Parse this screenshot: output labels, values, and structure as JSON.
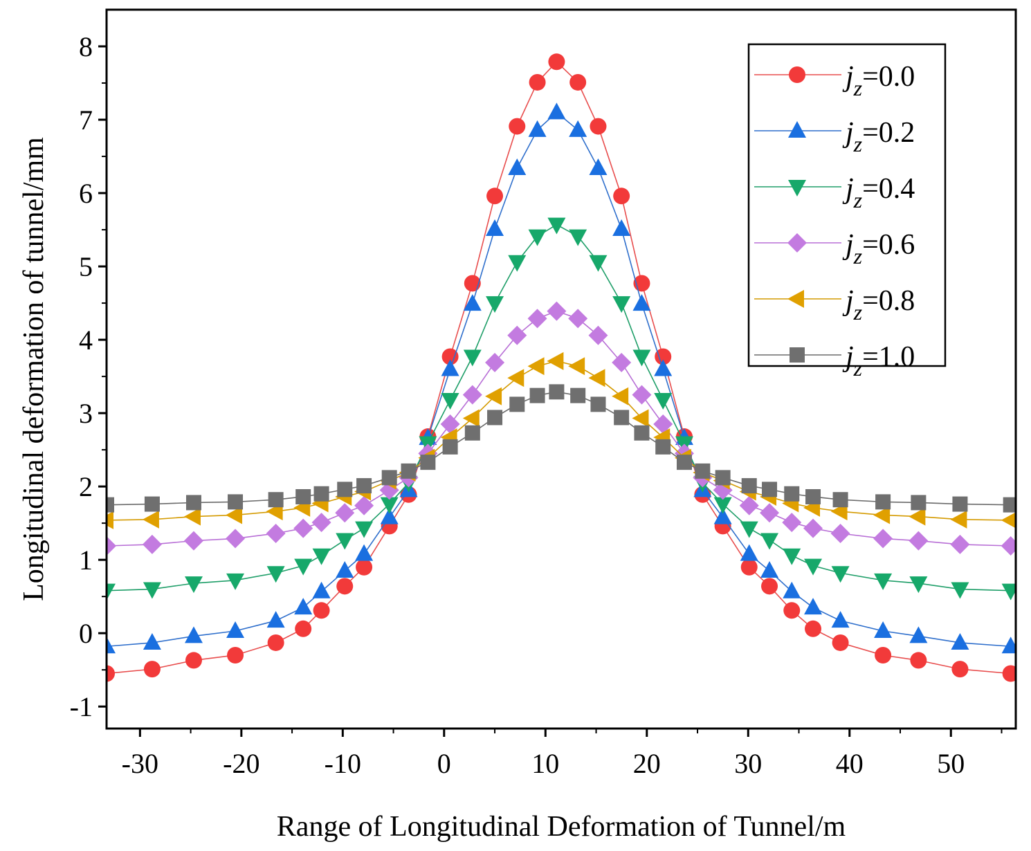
{
  "chart_data": {
    "type": "line",
    "title": "",
    "xlabel": "Range of Longitudinal Deformation of Tunnel/m",
    "ylabel": "Longitudinal deformation of tunnel/mm",
    "xlim": [
      -33.3,
      56.4
    ],
    "ylim": [
      -1.3,
      8.5
    ],
    "xticks": [
      -30,
      -20,
      -10,
      0,
      10,
      20,
      30,
      40,
      50
    ],
    "xtick_labels": [
      "-30",
      "-20",
      "-10",
      "0",
      "10",
      "20",
      "30",
      "40",
      "50"
    ],
    "yticks": [
      -1,
      0,
      1,
      2,
      3,
      4,
      5,
      6,
      7,
      8
    ],
    "ytick_labels": [
      "-1",
      "0",
      "1",
      "2",
      "3",
      "4",
      "5",
      "6",
      "7",
      "8"
    ],
    "grid": false,
    "legend_position": "top-right",
    "x": [
      -33.3,
      -28.8,
      -24.7,
      -20.6,
      -16.6,
      -13.9,
      -12.1,
      -9.8,
      -7.9,
      -5.4,
      -3.5,
      -1.6,
      0.6,
      2.8,
      5.0,
      7.2,
      9.2,
      11.1,
      13.2,
      15.2,
      17.5,
      19.5,
      21.6,
      23.7,
      25.5,
      27.5,
      30.1,
      32.1,
      34.3,
      36.4,
      39.1,
      43.3,
      46.8,
      50.9,
      55.9
    ],
    "series": [
      {
        "name": "jz=0.0",
        "label_var": "j",
        "label_sub": "z",
        "label_val": "=0.0",
        "marker": "circle",
        "color": "#f23a3a",
        "line_color": "#e84d4d",
        "values": [
          -0.55,
          -0.49,
          -0.37,
          -0.3,
          -0.13,
          0.06,
          0.31,
          0.64,
          0.9,
          1.46,
          1.89,
          2.68,
          3.77,
          4.77,
          5.96,
          6.91,
          7.51,
          7.79,
          7.51,
          6.91,
          5.96,
          4.77,
          3.77,
          2.68,
          1.89,
          1.46,
          0.9,
          0.64,
          0.31,
          0.06,
          -0.13,
          -0.3,
          -0.37,
          -0.49,
          -0.55
        ]
      },
      {
        "name": "jz=0.2",
        "label_var": "j",
        "label_sub": "z",
        "label_val": "=0.2",
        "marker": "triangle-up",
        "color": "#1a6fe0",
        "line_color": "#2f6fcc",
        "values": [
          -0.18,
          -0.13,
          -0.04,
          0.03,
          0.17,
          0.35,
          0.57,
          0.85,
          1.08,
          1.58,
          1.95,
          2.66,
          3.6,
          4.49,
          5.51,
          6.34,
          6.86,
          7.1,
          6.86,
          6.34,
          5.51,
          4.49,
          3.6,
          2.66,
          1.95,
          1.58,
          1.08,
          0.85,
          0.57,
          0.35,
          0.17,
          0.03,
          -0.04,
          -0.13,
          -0.18
        ]
      },
      {
        "name": "jz=0.4",
        "label_var": "j",
        "label_sub": "z",
        "label_val": "=0.4",
        "marker": "triangle-down",
        "color": "#17a86a",
        "line_color": "#1e9e68",
        "values": [
          0.58,
          0.6,
          0.68,
          0.72,
          0.82,
          0.92,
          1.06,
          1.27,
          1.43,
          1.76,
          2.05,
          2.59,
          3.18,
          3.77,
          4.5,
          5.06,
          5.41,
          5.57,
          5.41,
          5.06,
          4.5,
          3.77,
          3.18,
          2.59,
          2.05,
          1.76,
          1.43,
          1.27,
          1.06,
          0.92,
          0.82,
          0.72,
          0.68,
          0.6,
          0.58
        ]
      },
      {
        "name": "jz=0.6",
        "label_var": "j",
        "label_sub": "z",
        "label_val": "=0.6",
        "marker": "diamond",
        "color": "#c37be0",
        "line_color": "#b86fd6",
        "values": [
          1.19,
          1.21,
          1.26,
          1.29,
          1.36,
          1.43,
          1.51,
          1.64,
          1.74,
          1.95,
          2.12,
          2.45,
          2.85,
          3.25,
          3.69,
          4.06,
          4.29,
          4.39,
          4.29,
          4.06,
          3.69,
          3.25,
          2.85,
          2.45,
          2.12,
          1.95,
          1.74,
          1.64,
          1.51,
          1.43,
          1.36,
          1.29,
          1.26,
          1.21,
          1.19
        ]
      },
      {
        "name": "jz=0.8",
        "label_var": "j",
        "label_sub": "z",
        "label_val": "=0.8",
        "marker": "triangle-left",
        "color": "#e0a000",
        "line_color": "#d49a00",
        "values": [
          1.54,
          1.55,
          1.59,
          1.61,
          1.66,
          1.71,
          1.77,
          1.86,
          1.93,
          2.08,
          2.19,
          2.39,
          2.67,
          2.93,
          3.23,
          3.48,
          3.64,
          3.71,
          3.64,
          3.48,
          3.23,
          2.93,
          2.67,
          2.39,
          2.19,
          2.08,
          1.93,
          1.86,
          1.77,
          1.71,
          1.66,
          1.61,
          1.59,
          1.55,
          1.54
        ]
      },
      {
        "name": "jz=1.0",
        "label_var": "j",
        "label_sub": "z",
        "label_val": "=1.0",
        "marker": "square",
        "color": "#6f6f6f",
        "line_color": "#6a6a6a",
        "values": [
          1.75,
          1.76,
          1.78,
          1.79,
          1.82,
          1.86,
          1.9,
          1.96,
          2.01,
          2.12,
          2.21,
          2.33,
          2.54,
          2.73,
          2.94,
          3.12,
          3.24,
          3.29,
          3.24,
          3.12,
          2.94,
          2.73,
          2.54,
          2.33,
          2.21,
          2.12,
          2.01,
          1.96,
          1.9,
          1.86,
          1.82,
          1.79,
          1.78,
          1.76,
          1.75
        ]
      }
    ]
  }
}
